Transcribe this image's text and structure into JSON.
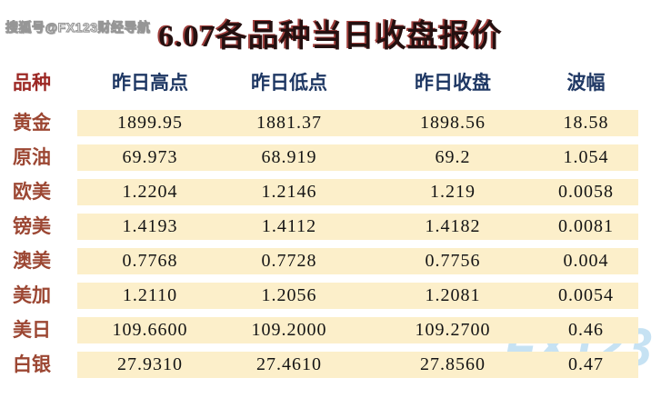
{
  "watermarks": {
    "top_left": "搜狐号@FX123财经导航",
    "bottom_right": "FX123"
  },
  "title": "6.07各品种当日收盘报价",
  "table": {
    "columns": {
      "name": "品种",
      "high": "昨日高点",
      "low": "昨日低点",
      "close": "昨日收盘",
      "range": "波幅"
    },
    "rows": [
      {
        "name": "黄金",
        "high": "1899.95",
        "low": "1881.37",
        "close": "1898.56",
        "range": "18.58"
      },
      {
        "name": "原油",
        "high": "69.973",
        "low": "68.919",
        "close": "69.2",
        "range": "1.054"
      },
      {
        "name": "欧美",
        "high": "1.2204",
        "low": "1.2146",
        "close": "1.219",
        "range": "0.0058"
      },
      {
        "name": "镑美",
        "high": "1.4193",
        "low": "1.4112",
        "close": "1.4182",
        "range": "0.0081"
      },
      {
        "name": "澳美",
        "high": "0.7768",
        "low": "0.7728",
        "close": "0.7756",
        "range": "0.004"
      },
      {
        "name": "美加",
        "high": "1.2110",
        "low": "1.2056",
        "close": "1.2081",
        "range": "0.0054"
      },
      {
        "name": "美日",
        "high": "109.6600",
        "low": "109.2000",
        "close": "109.2700",
        "range": "0.46"
      },
      {
        "name": "白银",
        "high": "27.9310",
        "low": "27.4610",
        "close": "27.8560",
        "range": "0.47"
      }
    ]
  },
  "chart_data": {
    "type": "table",
    "title": "6.07各品种当日收盘报价",
    "columns": [
      "品种",
      "昨日高点",
      "昨日低点",
      "昨日收盘",
      "波幅"
    ],
    "rows": [
      [
        "黄金",
        1899.95,
        1881.37,
        1898.56,
        18.58
      ],
      [
        "原油",
        69.973,
        68.919,
        69.2,
        1.054
      ],
      [
        "欧美",
        1.2204,
        1.2146,
        1.219,
        0.0058
      ],
      [
        "镑美",
        1.4193,
        1.4112,
        1.4182,
        0.0081
      ],
      [
        "澳美",
        0.7768,
        0.7728,
        0.7756,
        0.004
      ],
      [
        "美加",
        1.211,
        1.2056,
        1.2081,
        0.0054
      ],
      [
        "美日",
        109.66,
        109.2,
        109.27,
        0.46
      ],
      [
        "白银",
        27.931,
        27.461,
        27.856,
        0.47
      ]
    ]
  },
  "colors": {
    "cell_background": "#fcefca",
    "row_label": "#9c4733",
    "header_text": "#1f3864",
    "header_name": "#9c2824",
    "title_text": "#241010",
    "watermark_blue": "#c6e2f3",
    "page_background": "#ffffff"
  }
}
